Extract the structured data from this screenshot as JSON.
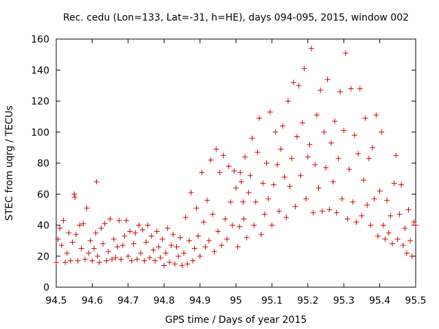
{
  "chart_data": {
    "type": "scatter",
    "title": "Rec. cedu (Lon=133, Lat=-31, h=HE), days 094-095, 2015, window 002",
    "xlabel": "GPS time / Days of year 2015",
    "ylabel": "STEC from uqrg / TECUs",
    "xlim": [
      94.5,
      95.5
    ],
    "ylim": [
      0,
      160
    ],
    "x_ticks": [
      94.5,
      94.6,
      94.7,
      94.8,
      94.9,
      95,
      95.1,
      95.2,
      95.3,
      95.4,
      95.5
    ],
    "x_tick_labels": [
      "94.5",
      "94.6",
      "94.7",
      "94.8",
      "94.9",
      "95",
      "95.1",
      "95.2",
      "95.3",
      "95.4",
      "95.5"
    ],
    "y_ticks": [
      0,
      20,
      40,
      60,
      80,
      100,
      120,
      140,
      160
    ],
    "y_tick_labels": [
      "0",
      "20",
      "40",
      "60",
      "80",
      "100",
      "120",
      "140",
      "160"
    ],
    "grid": false,
    "marker": "plus",
    "color": "#cc0000",
    "series": [
      {
        "name": "STEC",
        "points": [
          [
            94.5,
            16
          ],
          [
            94.505,
            31
          ],
          [
            94.51,
            38
          ],
          [
            94.515,
            27
          ],
          [
            94.52,
            43
          ],
          [
            94.525,
            16
          ],
          [
            94.53,
            22
          ],
          [
            94.535,
            35
          ],
          [
            94.54,
            17
          ],
          [
            94.545,
            29
          ],
          [
            94.55,
            60
          ],
          [
            94.552,
            58
          ],
          [
            94.555,
            34
          ],
          [
            94.56,
            17
          ],
          [
            94.565,
            40
          ],
          [
            94.57,
            25
          ],
          [
            94.575,
            41
          ],
          [
            94.58,
            18
          ],
          [
            94.585,
            51
          ],
          [
            94.59,
            22
          ],
          [
            94.595,
            30
          ],
          [
            94.6,
            17
          ],
          [
            94.605,
            25
          ],
          [
            94.61,
            35
          ],
          [
            94.612,
            68
          ],
          [
            94.615,
            20
          ],
          [
            94.62,
            16
          ],
          [
            94.625,
            38
          ],
          [
            94.63,
            28
          ],
          [
            94.635,
            41
          ],
          [
            94.64,
            17
          ],
          [
            94.645,
            23
          ],
          [
            94.65,
            44
          ],
          [
            94.655,
            18
          ],
          [
            94.66,
            31
          ],
          [
            94.665,
            19
          ],
          [
            94.67,
            26
          ],
          [
            94.675,
            43
          ],
          [
            94.68,
            18
          ],
          [
            94.685,
            27
          ],
          [
            94.69,
            33
          ],
          [
            94.695,
            43
          ],
          [
            94.7,
            20
          ],
          [
            94.705,
            36
          ],
          [
            94.71,
            17
          ],
          [
            94.715,
            28
          ],
          [
            94.72,
            35
          ],
          [
            94.725,
            18
          ],
          [
            94.73,
            40
          ],
          [
            94.735,
            22
          ],
          [
            94.74,
            37
          ],
          [
            94.745,
            17
          ],
          [
            94.75,
            29
          ],
          [
            94.755,
            40
          ],
          [
            94.76,
            19
          ],
          [
            94.765,
            33
          ],
          [
            94.77,
            24
          ],
          [
            94.775,
            17
          ],
          [
            94.78,
            36
          ],
          [
            94.785,
            26
          ],
          [
            94.79,
            19
          ],
          [
            94.795,
            31
          ],
          [
            94.8,
            14
          ],
          [
            94.805,
            22
          ],
          [
            94.81,
            38
          ],
          [
            94.815,
            16
          ],
          [
            94.82,
            27
          ],
          [
            94.825,
            34
          ],
          [
            94.83,
            15
          ],
          [
            94.835,
            26
          ],
          [
            94.84,
            20
          ],
          [
            94.845,
            32
          ],
          [
            94.85,
            14
          ],
          [
            94.855,
            22
          ],
          [
            94.86,
            45
          ],
          [
            94.865,
            15
          ],
          [
            94.87,
            30
          ],
          [
            94.875,
            61
          ],
          [
            94.88,
            17
          ],
          [
            94.885,
            25
          ],
          [
            94.89,
            51
          ],
          [
            94.895,
            33
          ],
          [
            94.9,
            20
          ],
          [
            94.905,
            74
          ],
          [
            94.91,
            42
          ],
          [
            94.915,
            26
          ],
          [
            94.92,
            56
          ],
          [
            94.925,
            30
          ],
          [
            94.93,
            82
          ],
          [
            94.935,
            47
          ],
          [
            94.94,
            23
          ],
          [
            94.945,
            89
          ],
          [
            94.95,
            36
          ],
          [
            94.955,
            74
          ],
          [
            94.96,
            27
          ],
          [
            94.965,
            85
          ],
          [
            94.97,
            44
          ],
          [
            94.975,
            31
          ],
          [
            94.98,
            78
          ],
          [
            94.985,
            55
          ],
          [
            94.99,
            40
          ],
          [
            94.995,
            75
          ],
          [
            95,
            64
          ],
          [
            95.005,
            26
          ],
          [
            95.01,
            39
          ],
          [
            95.012,
            74
          ],
          [
            95.015,
            68
          ],
          [
            95.02,
            55
          ],
          [
            95.022,
            44
          ],
          [
            95.025,
            84
          ],
          [
            95.03,
            32
          ],
          [
            95.035,
            61
          ],
          [
            95.04,
            72
          ],
          [
            95.045,
            96
          ],
          [
            95.05,
            40
          ],
          [
            95.055,
            55
          ],
          [
            95.06,
            87
          ],
          [
            95.065,
            109
          ],
          [
            95.07,
            34
          ],
          [
            95.075,
            67
          ],
          [
            95.08,
            47
          ],
          [
            95.085,
            80
          ],
          [
            95.09,
            57
          ],
          [
            95.095,
            113
          ],
          [
            95.1,
            40
          ],
          [
            95.105,
            66
          ],
          [
            95.11,
            100
          ],
          [
            95.115,
            79
          ],
          [
            95.12,
            49
          ],
          [
            95.125,
            89
          ],
          [
            95.13,
            104
          ],
          [
            95.135,
            71
          ],
          [
            95.14,
            45
          ],
          [
            95.145,
            120
          ],
          [
            95.15,
            65
          ],
          [
            95.155,
            83
          ],
          [
            95.16,
            132
          ],
          [
            95.165,
            52
          ],
          [
            95.17,
            97
          ],
          [
            95.175,
            130
          ],
          [
            95.18,
            72
          ],
          [
            95.185,
            106
          ],
          [
            95.19,
            141
          ],
          [
            95.195,
            57
          ],
          [
            95.2,
            84
          ],
          [
            95.205,
            92
          ],
          [
            95.21,
            154
          ],
          [
            95.215,
            48
          ],
          [
            95.22,
            79
          ],
          [
            95.225,
            111
          ],
          [
            95.23,
            64
          ],
          [
            95.235,
            127
          ],
          [
            95.24,
            49
          ],
          [
            95.245,
            100
          ],
          [
            95.25,
            77
          ],
          [
            95.255,
            134
          ],
          [
            95.26,
            50
          ],
          [
            95.265,
            93
          ],
          [
            95.27,
            68
          ],
          [
            95.275,
            107
          ],
          [
            95.28,
            48
          ],
          [
            95.285,
            83
          ],
          [
            95.29,
            126
          ],
          [
            95.295,
            57
          ],
          [
            95.3,
            101
          ],
          [
            95.305,
            151
          ],
          [
            95.31,
            44
          ],
          [
            95.315,
            76
          ],
          [
            95.32,
            128
          ],
          [
            95.325,
            55
          ],
          [
            95.33,
            98
          ],
          [
            95.335,
            42
          ],
          [
            95.34,
            86
          ],
          [
            95.345,
            128
          ],
          [
            95.35,
            46
          ],
          [
            95.355,
            69
          ],
          [
            95.36,
            109
          ],
          [
            95.365,
            53
          ],
          [
            95.37,
            83
          ],
          [
            95.375,
            40
          ],
          [
            95.38,
            90
          ],
          [
            95.385,
            57
          ],
          [
            95.39,
            111
          ],
          [
            95.395,
            33
          ],
          [
            95.4,
            62
          ],
          [
            95.405,
            100
          ],
          [
            95.41,
            40
          ],
          [
            95.415,
            31
          ],
          [
            95.42,
            56
          ],
          [
            95.425,
            35
          ],
          [
            95.43,
            46
          ],
          [
            95.435,
            28
          ],
          [
            95.44,
            67
          ],
          [
            95.445,
            85
          ],
          [
            95.45,
            31
          ],
          [
            95.455,
            47
          ],
          [
            95.46,
            66
          ],
          [
            95.465,
            27
          ],
          [
            95.47,
            38
          ],
          [
            95.475,
            22
          ],
          [
            95.48,
            50
          ],
          [
            95.485,
            30
          ],
          [
            95.49,
            20
          ],
          [
            95.495,
            42
          ],
          [
            95.5,
            40
          ]
        ]
      }
    ]
  }
}
